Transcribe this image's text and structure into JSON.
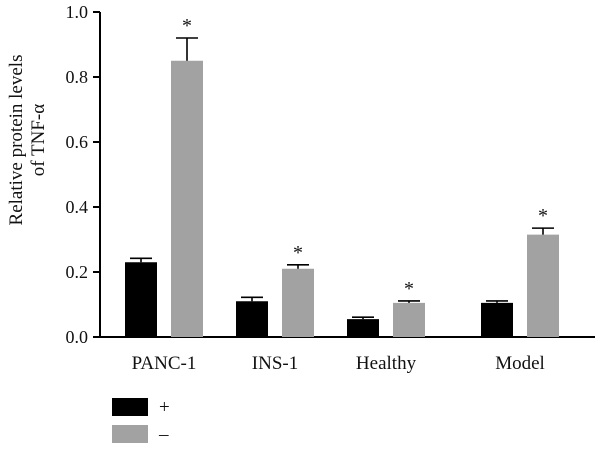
{
  "chart_data": {
    "type": "bar",
    "ylabel_lines": [
      "Relative protein levels",
      "of TNF-α"
    ],
    "ylim": [
      0,
      1.0
    ],
    "yticks": [
      "0.0",
      "0.2",
      "0.4",
      "0.6",
      "0.8",
      "1.0"
    ],
    "categories": [
      "PANC-1",
      "INS-1",
      "Healthy",
      "Model"
    ],
    "series": [
      {
        "name": "+",
        "color": "#000000",
        "values": [
          0.23,
          0.11,
          0.055,
          0.105
        ],
        "errors": [
          0.012,
          0.012,
          0.006,
          0.006
        ],
        "significant": [
          false,
          false,
          false,
          false
        ]
      },
      {
        "name": "–",
        "color": "#a2a2a2",
        "values": [
          0.85,
          0.21,
          0.105,
          0.315
        ],
        "errors": [
          0.07,
          0.012,
          0.006,
          0.02
        ],
        "significant": [
          true,
          true,
          true,
          true
        ]
      }
    ],
    "significance_marker": "*",
    "legend": "bottom-left"
  }
}
